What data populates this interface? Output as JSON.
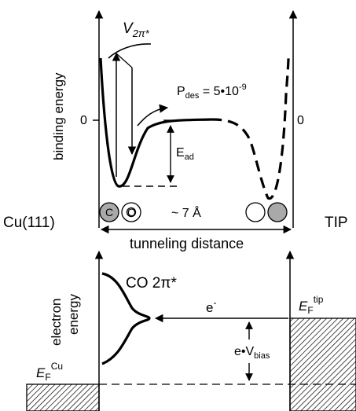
{
  "diagram": {
    "potential_label": "V",
    "potential_sub": "2π*",
    "ylabel_top": "binding energy",
    "zero_left": "0",
    "zero_right": "0",
    "pdes_main": "P",
    "pdes_sub": "des",
    "pdes_value": " = 5•10",
    "pdes_exp": "-9",
    "ead_main": "E",
    "ead_sub": "ad",
    "cu_label": "Cu(111)",
    "tip_label": "TIP",
    "distance_value": "~ 7 Å",
    "atom_c": "C",
    "atom_o": "O",
    "axis_label": "tunneling distance",
    "ylabel_bottom_1": "electron",
    "ylabel_bottom_2": "energy",
    "co_label": "CO 2π*",
    "electron_label": "e",
    "electron_sup": "-",
    "ef_tip_main": "E",
    "ef_tip_sub": "F",
    "ef_tip_sup": "tip",
    "ef_cu_main": "E",
    "ef_cu_sub": "F",
    "ef_cu_sup": "Cu",
    "bias_label": "e•V",
    "bias_sub": "bias"
  }
}
